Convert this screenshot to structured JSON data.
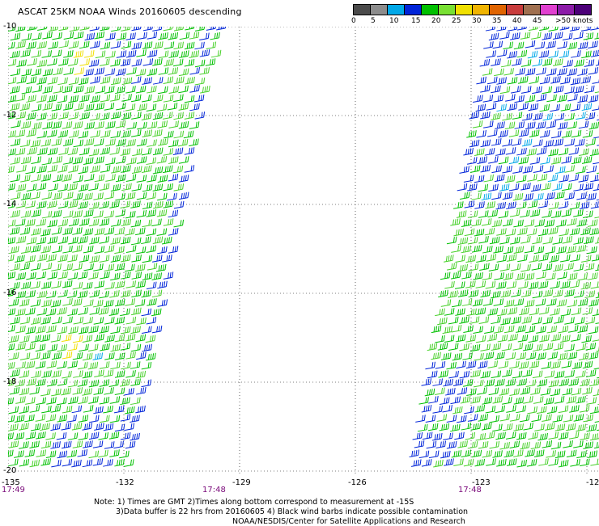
{
  "title": "ASCAT 25KM NOAA Winds 20160605 descending",
  "legend": {
    "colors": [
      "#4b4b4b",
      "#8c8c8c",
      "#00a8e8",
      "#0024d8",
      "#00c000",
      "#78e032",
      "#f0e000",
      "#f0b400",
      "#e06400",
      "#c83c3c",
      "#a07050",
      "#e040d0",
      "#8c1ca8",
      "#4c0078"
    ],
    "labels": [
      "0",
      "5",
      "10",
      "15",
      "20",
      "25",
      "30",
      "35",
      "40",
      "45",
      ">50 knots"
    ]
  },
  "map": {
    "lat_labels": [
      "-10",
      "-12",
      "-14",
      "-16",
      "-18",
      "-20"
    ],
    "lon_labels": [
      "-135",
      "-132",
      "-129",
      "-126",
      "-123",
      "-12"
    ],
    "lon_range": [
      -135,
      -122
    ],
    "lat_range": [
      -10,
      -20
    ],
    "time_labels": [
      "17:49",
      "17:48",
      "17:48"
    ]
  },
  "notes": {
    "line1": "Note: 1) Times are GMT 2)Times along bottom correspond to measurement at -15S",
    "line2": "3)Data buffer is 22 hrs from 20160605 4) Black wind barbs indicate possible contamination",
    "line3": "NOAA/NESDIS/Center for Satellite Applications and Research"
  }
}
